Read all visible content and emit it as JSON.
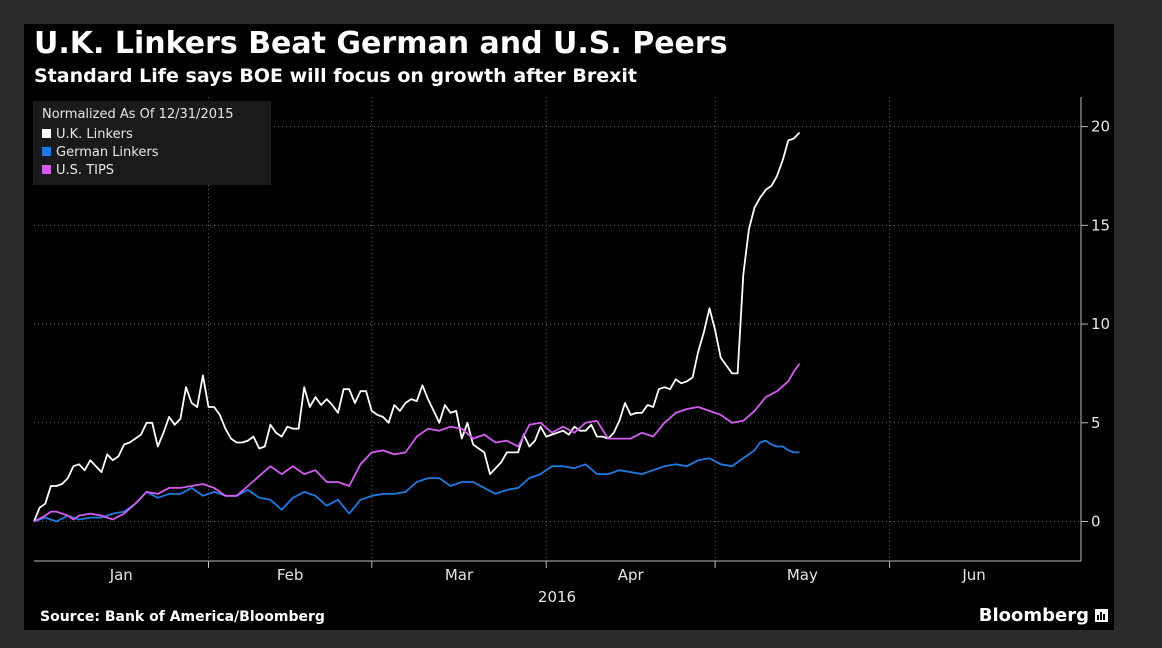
{
  "header": {
    "title": "U.K. Linkers Beat German and U.S. Peers",
    "subtitle": "Standard Life says BOE will focus on growth after Brexit"
  },
  "legend": {
    "title": "Normalized As Of 12/31/2015",
    "items": [
      {
        "label": "U.K. Linkers",
        "color": "#ffffff"
      },
      {
        "label": "German Linkers",
        "color": "#1f7ae0"
      },
      {
        "label": "U.S. TIPS",
        "color": "#d45cf0"
      }
    ]
  },
  "footer": {
    "source": "Source: Bank of America/Bloomberg",
    "brand": "Bloomberg"
  },
  "chart_data": {
    "type": "line",
    "xlabel": "2016",
    "x_months": [
      "Jan",
      "Feb",
      "Mar",
      "Apr",
      "May",
      "Jun"
    ],
    "x_range_days": [
      0,
      186
    ],
    "ylim": [
      -2,
      21.5
    ],
    "yticks": [
      0,
      5,
      10,
      15,
      20
    ],
    "ytick_labels": [
      "0",
      "5",
      "10",
      "15",
      "20"
    ],
    "grid": "dashed",
    "legend_position": "top-left",
    "series": [
      {
        "name": "U.K. Linkers",
        "color": "#ffffff",
        "points": [
          [
            0,
            0
          ],
          [
            1,
            0.7
          ],
          [
            2,
            0.9
          ],
          [
            3,
            1.8
          ],
          [
            4,
            1.8
          ],
          [
            5,
            1.9
          ],
          [
            6,
            2.2
          ],
          [
            7,
            2.8
          ],
          [
            8,
            2.9
          ],
          [
            9,
            2.6
          ],
          [
            10,
            3.1
          ],
          [
            11,
            2.8
          ],
          [
            12,
            2.5
          ],
          [
            13,
            3.4
          ],
          [
            14,
            3.1
          ],
          [
            15,
            3.3
          ],
          [
            16,
            3.9
          ],
          [
            17,
            4.0
          ],
          [
            18,
            4.2
          ],
          [
            19,
            4.4
          ],
          [
            20,
            5.0
          ],
          [
            21,
            5.0
          ],
          [
            22,
            3.8
          ],
          [
            23,
            4.5
          ],
          [
            24,
            5.3
          ],
          [
            25,
            4.9
          ],
          [
            26,
            5.2
          ],
          [
            27,
            6.8
          ],
          [
            28,
            6.0
          ],
          [
            29,
            5.8
          ],
          [
            30,
            7.4
          ],
          [
            31,
            5.8
          ],
          [
            32,
            5.8
          ],
          [
            33,
            5.4
          ],
          [
            34,
            4.7
          ],
          [
            35,
            4.2
          ],
          [
            36,
            4.0
          ],
          [
            37,
            4.0
          ],
          [
            38,
            4.1
          ],
          [
            39,
            4.3
          ],
          [
            40,
            3.7
          ],
          [
            41,
            3.8
          ],
          [
            42,
            4.9
          ],
          [
            43,
            4.5
          ],
          [
            44,
            4.3
          ],
          [
            45,
            4.8
          ],
          [
            46,
            4.7
          ],
          [
            47,
            4.7
          ],
          [
            48,
            6.8
          ],
          [
            49,
            5.8
          ],
          [
            50,
            6.3
          ],
          [
            51,
            5.9
          ],
          [
            52,
            6.2
          ],
          [
            53,
            5.9
          ],
          [
            54,
            5.5
          ],
          [
            55,
            6.7
          ],
          [
            56,
            6.7
          ],
          [
            57,
            6.0
          ],
          [
            58,
            6.6
          ],
          [
            59,
            6.6
          ],
          [
            60,
            5.6
          ],
          [
            61,
            5.4
          ],
          [
            62,
            5.3
          ],
          [
            63,
            5.0
          ],
          [
            64,
            5.9
          ],
          [
            65,
            5.6
          ],
          [
            66,
            6.0
          ],
          [
            67,
            6.2
          ],
          [
            68,
            6.1
          ],
          [
            69,
            6.9
          ],
          [
            70,
            6.2
          ],
          [
            71,
            5.6
          ],
          [
            72,
            5.0
          ],
          [
            73,
            5.9
          ],
          [
            74,
            5.5
          ],
          [
            75,
            5.6
          ],
          [
            76,
            4.2
          ],
          [
            77,
            5.0
          ],
          [
            78,
            3.9
          ],
          [
            79,
            3.7
          ],
          [
            80,
            3.5
          ],
          [
            81,
            2.4
          ],
          [
            82,
            2.7
          ],
          [
            83,
            3.0
          ],
          [
            84,
            3.5
          ],
          [
            85,
            3.5
          ],
          [
            86,
            3.5
          ],
          [
            87,
            4.4
          ],
          [
            88,
            3.8
          ],
          [
            89,
            4.1
          ],
          [
            90,
            4.8
          ],
          [
            91,
            4.3
          ],
          [
            92,
            4.4
          ],
          [
            93,
            4.5
          ],
          [
            94,
            4.6
          ],
          [
            95,
            4.4
          ],
          [
            96,
            4.8
          ],
          [
            97,
            4.6
          ],
          [
            98,
            4.6
          ],
          [
            99,
            4.9
          ],
          [
            100,
            4.3
          ],
          [
            101,
            4.3
          ],
          [
            102,
            4.2
          ],
          [
            103,
            4.5
          ],
          [
            104,
            5.1
          ],
          [
            105,
            6.0
          ],
          [
            106,
            5.4
          ],
          [
            107,
            5.5
          ],
          [
            108,
            5.5
          ],
          [
            109,
            5.9
          ],
          [
            110,
            5.8
          ],
          [
            111,
            6.7
          ],
          [
            112,
            6.8
          ],
          [
            113,
            6.7
          ],
          [
            114,
            7.2
          ],
          [
            115,
            7.0
          ],
          [
            116,
            7.1
          ],
          [
            117,
            7.3
          ],
          [
            118,
            8.6
          ],
          [
            119,
            9.6
          ],
          [
            120,
            10.8
          ],
          [
            121,
            9.7
          ],
          [
            122,
            8.3
          ],
          [
            123,
            7.9
          ],
          [
            124,
            7.5
          ],
          [
            125,
            7.5
          ],
          [
            126,
            12.5
          ],
          [
            127,
            14.8
          ],
          [
            128,
            15.9
          ],
          [
            129,
            16.4
          ],
          [
            130,
            16.8
          ],
          [
            131,
            17.0
          ],
          [
            132,
            17.5
          ],
          [
            133,
            18.3
          ],
          [
            134,
            19.3
          ],
          [
            135,
            19.4
          ],
          [
            136,
            19.7
          ]
        ]
      },
      {
        "name": "German Linkers",
        "color": "#1f7ae0",
        "points": [
          [
            0,
            0
          ],
          [
            2,
            0.2
          ],
          [
            4,
            0.0
          ],
          [
            6,
            0.3
          ],
          [
            8,
            0.1
          ],
          [
            10,
            0.2
          ],
          [
            12,
            0.2
          ],
          [
            14,
            0.4
          ],
          [
            16,
            0.5
          ],
          [
            18,
            0.9
          ],
          [
            20,
            1.5
          ],
          [
            22,
            1.2
          ],
          [
            24,
            1.4
          ],
          [
            26,
            1.4
          ],
          [
            28,
            1.7
          ],
          [
            30,
            1.3
          ],
          [
            32,
            1.5
          ],
          [
            34,
            1.3
          ],
          [
            36,
            1.3
          ],
          [
            38,
            1.6
          ],
          [
            40,
            1.2
          ],
          [
            42,
            1.1
          ],
          [
            44,
            0.6
          ],
          [
            46,
            1.2
          ],
          [
            48,
            1.5
          ],
          [
            50,
            1.3
          ],
          [
            52,
            0.8
          ],
          [
            54,
            1.1
          ],
          [
            56,
            0.4
          ],
          [
            58,
            1.1
          ],
          [
            60,
            1.3
          ],
          [
            62,
            1.4
          ],
          [
            64,
            1.4
          ],
          [
            66,
            1.5
          ],
          [
            68,
            2.0
          ],
          [
            70,
            2.2
          ],
          [
            72,
            2.2
          ],
          [
            74,
            1.8
          ],
          [
            76,
            2.0
          ],
          [
            78,
            2.0
          ],
          [
            80,
            1.7
          ],
          [
            82,
            1.4
          ],
          [
            84,
            1.6
          ],
          [
            86,
            1.7
          ],
          [
            88,
            2.2
          ],
          [
            90,
            2.4
          ],
          [
            92,
            2.8
          ],
          [
            94,
            2.8
          ],
          [
            96,
            2.7
          ],
          [
            98,
            2.9
          ],
          [
            100,
            2.4
          ],
          [
            102,
            2.4
          ],
          [
            104,
            2.6
          ],
          [
            106,
            2.5
          ],
          [
            108,
            2.4
          ],
          [
            110,
            2.6
          ],
          [
            112,
            2.8
          ],
          [
            114,
            2.9
          ],
          [
            116,
            2.8
          ],
          [
            118,
            3.1
          ],
          [
            120,
            3.2
          ],
          [
            122,
            2.9
          ],
          [
            124,
            2.8
          ],
          [
            126,
            3.2
          ],
          [
            128,
            3.6
          ],
          [
            129,
            4.0
          ],
          [
            130,
            4.1
          ],
          [
            131,
            3.9
          ],
          [
            132,
            3.8
          ],
          [
            133,
            3.8
          ],
          [
            134,
            3.6
          ],
          [
            135,
            3.5
          ],
          [
            136,
            3.5
          ]
        ]
      },
      {
        "name": "U.S. TIPS",
        "color": "#d45cf0",
        "points": [
          [
            0,
            0
          ],
          [
            2,
            0.3
          ],
          [
            3,
            0.5
          ],
          [
            4,
            0.5
          ],
          [
            6,
            0.3
          ],
          [
            7,
            0.1
          ],
          [
            8,
            0.3
          ],
          [
            10,
            0.4
          ],
          [
            12,
            0.3
          ],
          [
            14,
            0.1
          ],
          [
            16,
            0.4
          ],
          [
            18,
            0.9
          ],
          [
            20,
            1.5
          ],
          [
            22,
            1.4
          ],
          [
            24,
            1.7
          ],
          [
            26,
            1.7
          ],
          [
            28,
            1.8
          ],
          [
            30,
            1.9
          ],
          [
            32,
            1.7
          ],
          [
            34,
            1.3
          ],
          [
            36,
            1.3
          ],
          [
            38,
            1.8
          ],
          [
            40,
            2.3
          ],
          [
            42,
            2.8
          ],
          [
            44,
            2.4
          ],
          [
            46,
            2.8
          ],
          [
            48,
            2.4
          ],
          [
            50,
            2.6
          ],
          [
            52,
            2.0
          ],
          [
            54,
            2.0
          ],
          [
            56,
            1.8
          ],
          [
            58,
            2.9
          ],
          [
            60,
            3.5
          ],
          [
            62,
            3.6
          ],
          [
            64,
            3.4
          ],
          [
            66,
            3.5
          ],
          [
            68,
            4.3
          ],
          [
            70,
            4.7
          ],
          [
            72,
            4.6
          ],
          [
            74,
            4.8
          ],
          [
            76,
            4.7
          ],
          [
            78,
            4.2
          ],
          [
            80,
            4.4
          ],
          [
            82,
            4.0
          ],
          [
            84,
            4.1
          ],
          [
            86,
            3.8
          ],
          [
            88,
            4.9
          ],
          [
            90,
            5.0
          ],
          [
            92,
            4.5
          ],
          [
            94,
            4.8
          ],
          [
            96,
            4.5
          ],
          [
            98,
            5.0
          ],
          [
            100,
            5.1
          ],
          [
            102,
            4.2
          ],
          [
            104,
            4.2
          ],
          [
            106,
            4.2
          ],
          [
            108,
            4.5
          ],
          [
            110,
            4.3
          ],
          [
            112,
            5.0
          ],
          [
            114,
            5.5
          ],
          [
            116,
            5.7
          ],
          [
            118,
            5.8
          ],
          [
            120,
            5.6
          ],
          [
            122,
            5.4
          ],
          [
            124,
            5.0
          ],
          [
            126,
            5.1
          ],
          [
            128,
            5.6
          ],
          [
            130,
            6.3
          ],
          [
            132,
            6.6
          ],
          [
            134,
            7.1
          ],
          [
            135,
            7.6
          ],
          [
            136,
            8.0
          ]
        ]
      }
    ]
  }
}
